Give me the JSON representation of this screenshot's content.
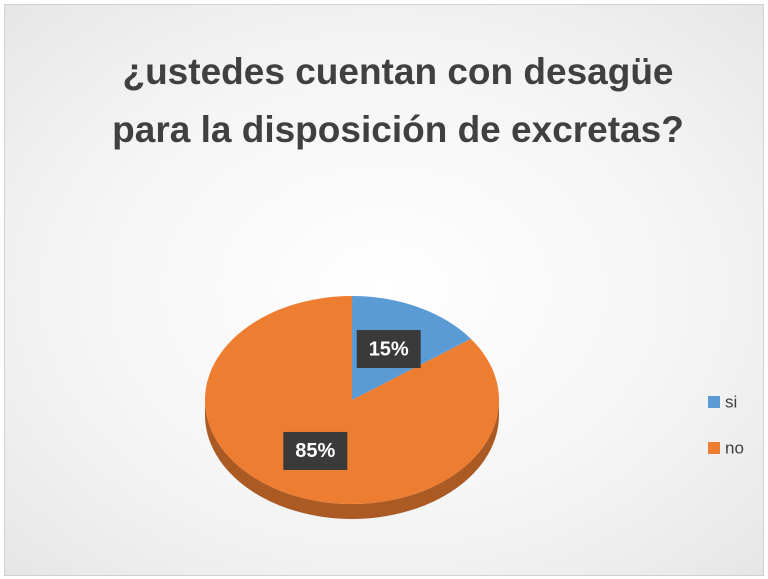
{
  "chart_data": {
    "type": "pie",
    "title": "¿ustedes cuentan con desagüe para la disposición de excretas?",
    "categories": [
      "si",
      "no"
    ],
    "values": [
      15,
      85
    ],
    "value_labels": [
      "15%",
      "85%"
    ],
    "colors": [
      "#5b9bd5",
      "#ed7d31"
    ],
    "legend": "right"
  }
}
